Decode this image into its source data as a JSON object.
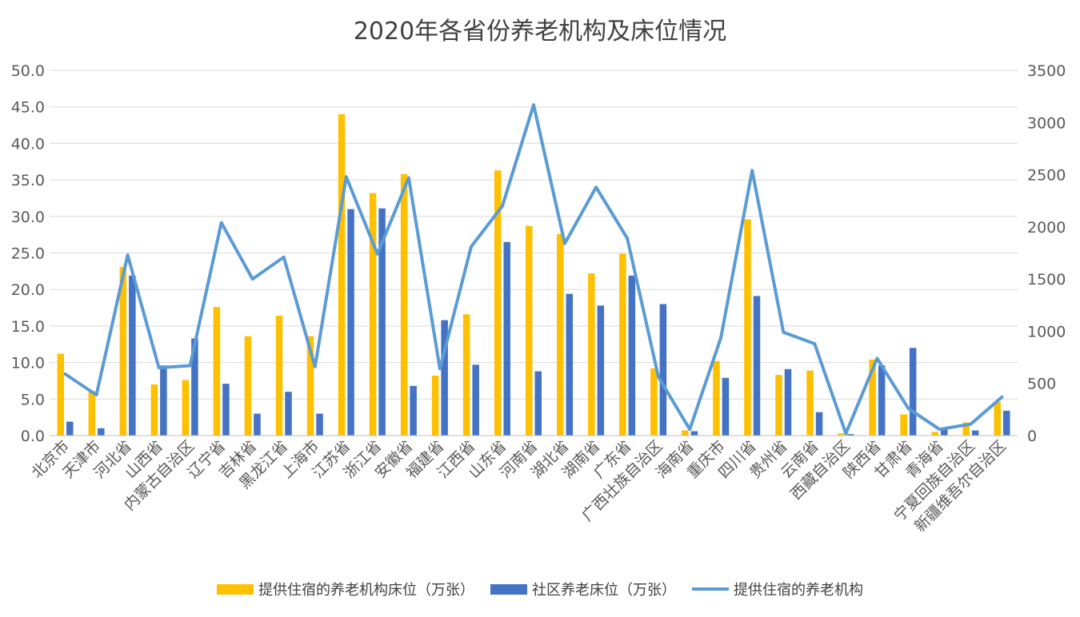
{
  "chart_data": {
    "type": "bar",
    "title": "2020年各省份养老机构及床位情况",
    "categories": [
      "北京市",
      "天津市",
      "河北省",
      "山西省",
      "内蒙古自治区",
      "辽宁省",
      "吉林省",
      "黑龙江省",
      "上海市",
      "江苏省",
      "浙江省",
      "安徽省",
      "福建省",
      "江西省",
      "山东省",
      "河南省",
      "湖北省",
      "湖南省",
      "广东省",
      "广西壮族自治区",
      "海南省",
      "重庆市",
      "四川省",
      "贵州省",
      "云南省",
      "西藏自治区",
      "陕西省",
      "甘肃省",
      "青海省",
      "宁夏回族自治区",
      "新疆维吾尔自治区"
    ],
    "series": [
      {
        "name": "提供住宿的养老机构床位（万张）",
        "type": "bar",
        "axis": "left",
        "color": "#FFC000",
        "values": [
          11.2,
          6.1,
          23.1,
          7.0,
          7.6,
          17.6,
          13.6,
          16.4,
          13.6,
          44.0,
          33.2,
          35.8,
          8.2,
          16.6,
          36.3,
          28.7,
          27.6,
          22.2,
          24.9,
          9.2,
          0.7,
          10.2,
          29.6,
          8.3,
          8.9,
          0.3,
          10.4,
          2.9,
          0.5,
          1.8,
          4.6
        ]
      },
      {
        "name": "社区养老床位（万张）",
        "type": "bar",
        "axis": "left",
        "color": "#4472C4",
        "values": [
          1.9,
          1.0,
          21.9,
          9.6,
          13.3,
          7.1,
          3.0,
          6.0,
          3.0,
          31.0,
          31.1,
          6.8,
          15.8,
          9.7,
          26.5,
          8.8,
          19.4,
          17.8,
          21.9,
          18.0,
          0.6,
          7.9,
          19.1,
          9.1,
          3.2,
          0.2,
          9.6,
          12.0,
          1.0,
          0.7,
          3.4
        ]
      },
      {
        "name": "提供住宿的养老机构",
        "type": "line",
        "axis": "right",
        "color": "#5B9BD5",
        "values": [
          590,
          390,
          1730,
          650,
          670,
          2040,
          1500,
          1710,
          660,
          2480,
          1740,
          2470,
          640,
          1810,
          2200,
          3170,
          1840,
          2380,
          1890,
          560,
          60,
          940,
          2540,
          990,
          880,
          20,
          740,
          260,
          60,
          110,
          370
        ]
      }
    ],
    "left_axis": {
      "min": 0,
      "max": 50,
      "ticks": [
        "0.0",
        "5.0",
        "10.0",
        "15.0",
        "20.0",
        "25.0",
        "30.0",
        "35.0",
        "40.0",
        "45.0",
        "50.0"
      ]
    },
    "right_axis": {
      "min": 0,
      "max": 3500,
      "ticks": [
        "0",
        "500",
        "1000",
        "1500",
        "2000",
        "2500",
        "3000",
        "3500"
      ]
    },
    "grid": true,
    "legend_position": "bottom"
  }
}
